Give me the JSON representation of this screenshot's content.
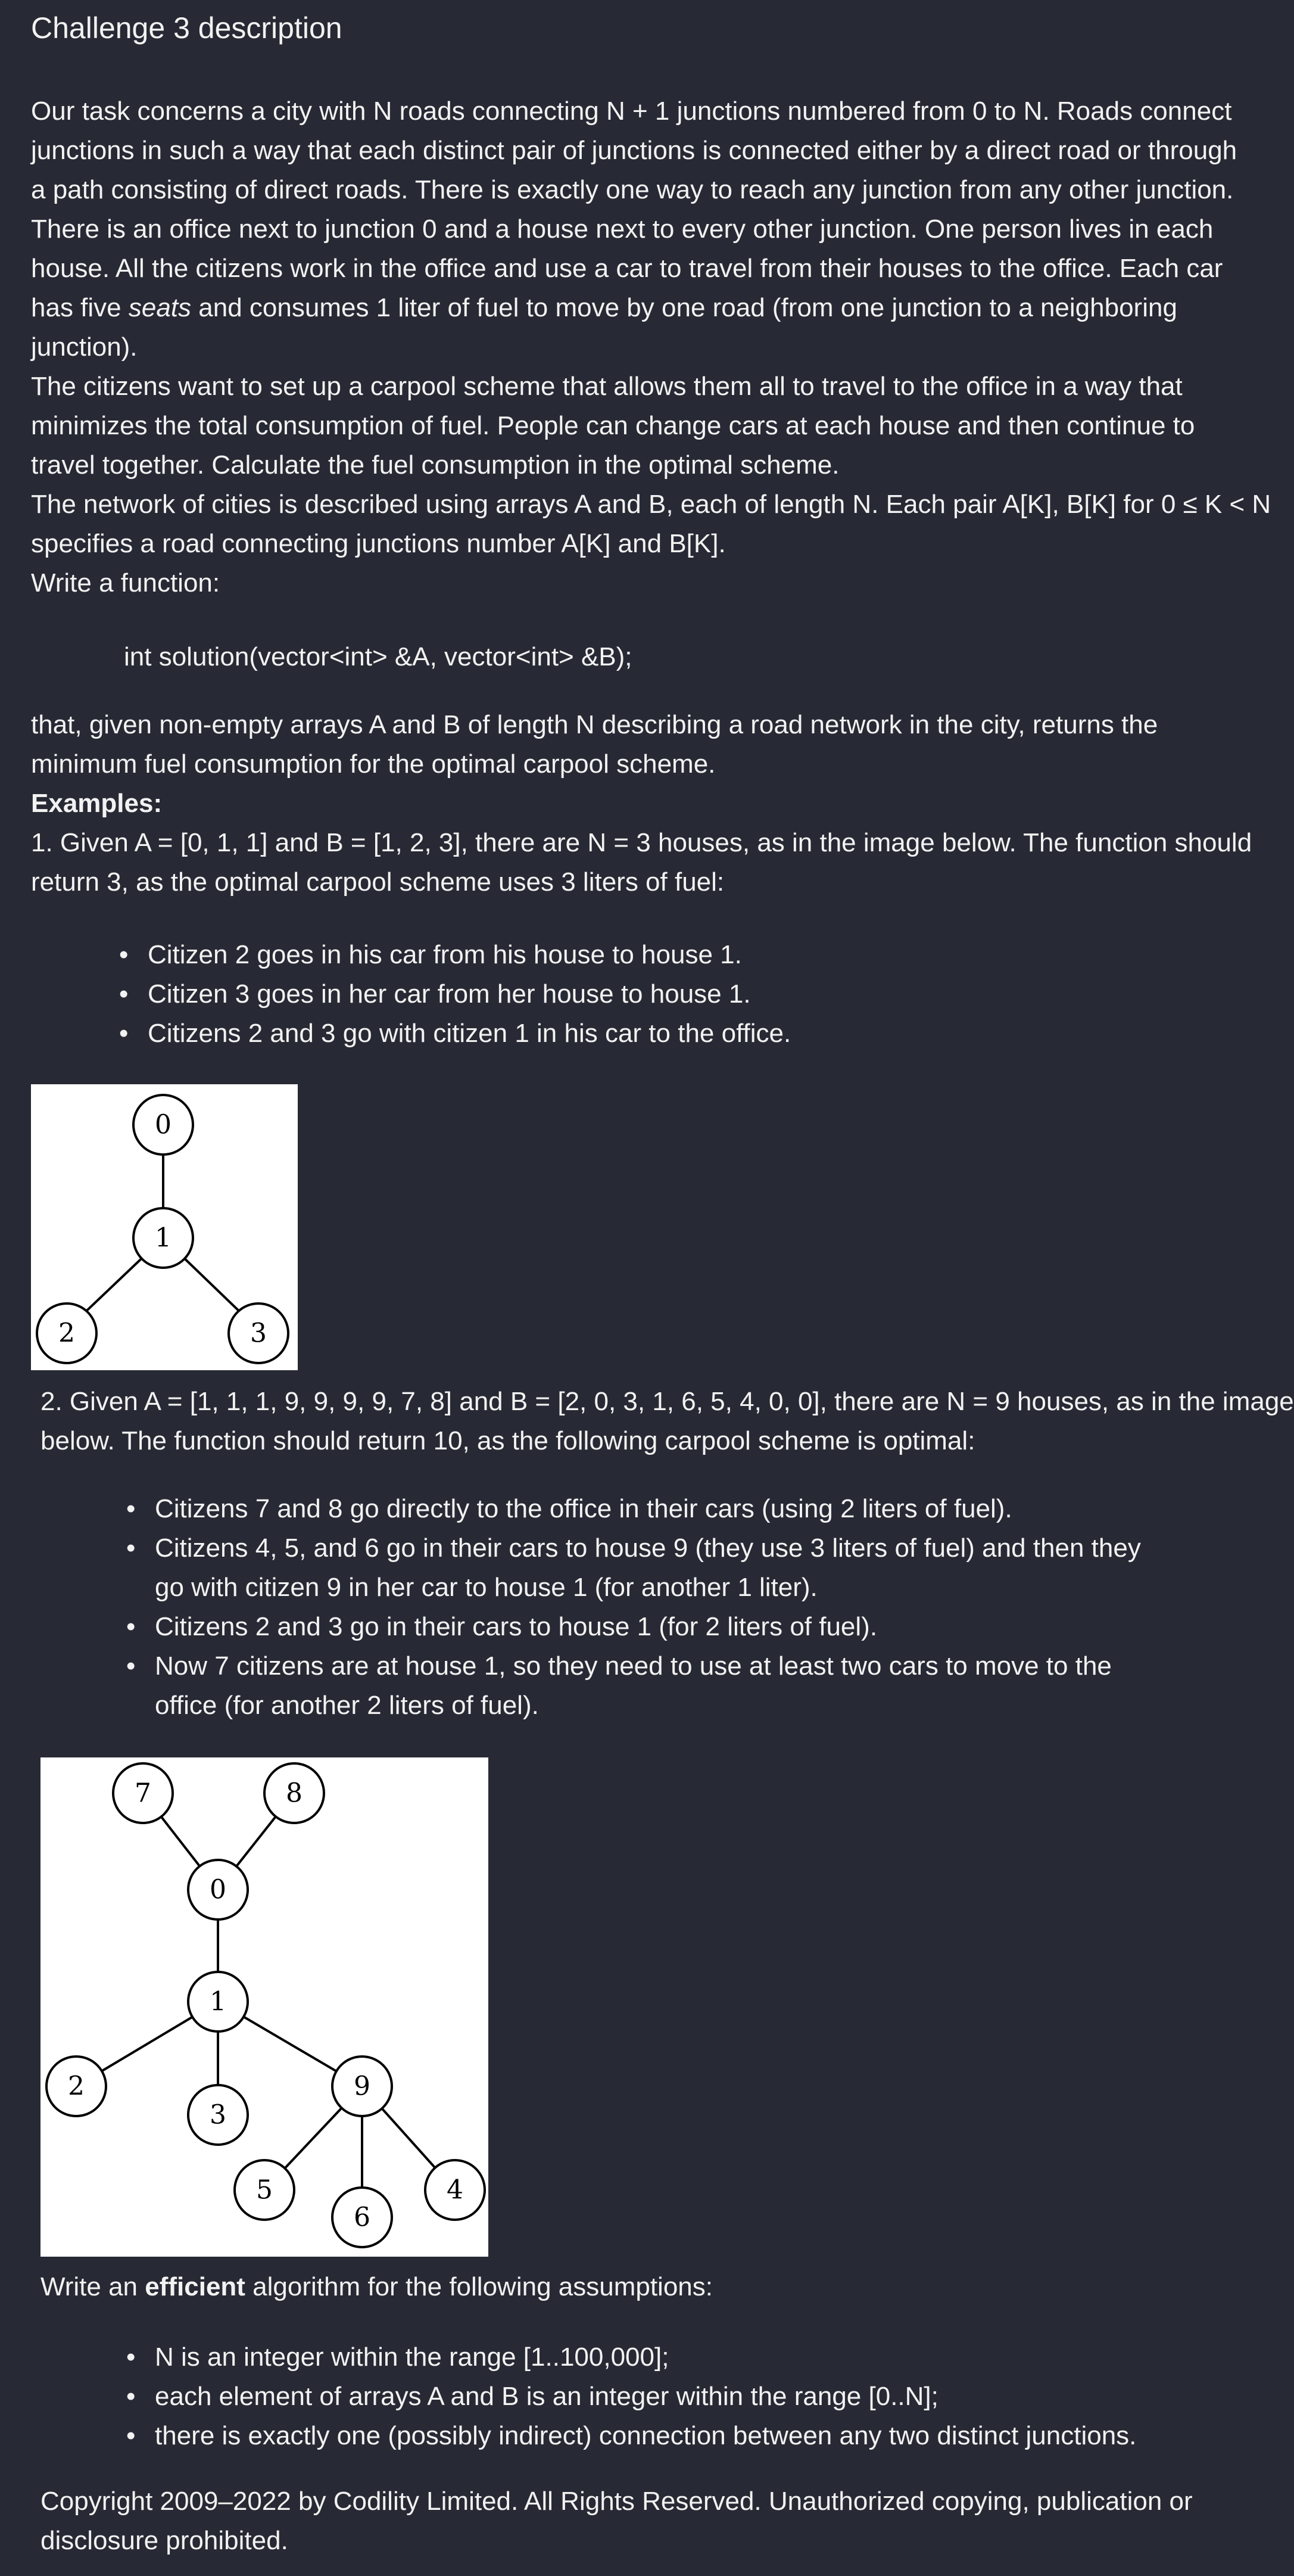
{
  "title": "Challenge 3 description",
  "intro_lines": [
    "Our task concerns a city with N roads connecting N + 1 junctions numbered from 0 to N. Roads connect",
    "junctions in such a way that each distinct pair of junctions is connected either by a direct road or through",
    "a path consisting of direct roads. There is exactly one way to reach any junction from any other junction.",
    "There is an office next to junction 0 and a house next to every other junction. One person lives in each",
    "house. All the citizens work in the office and use a car to travel from their houses to the office. Each car",
    "has five ",
    "seats",
    " and consumes 1 liter of fuel to move by one road (from one junction to a neighboring",
    "junction).",
    "The citizens want to set up a carpool scheme that allows them all to travel to the office in a way that",
    "minimizes the total consumption of fuel. People can change cars at each house and then continue to",
    "travel together. Calculate the fuel consumption in the optimal scheme.",
    "The network of cities is described using arrays A and B, each of length N. Each pair A[K], B[K] for 0 ≤ K < N",
    "specifies a road connecting junctions number A[K] and B[K].",
    "Write a function:"
  ],
  "code": "int solution(vector<int> &A, vector<int> &B);",
  "after_code_lines": [
    "that, given non-empty arrays A and B of length N describing a road network in the city, returns the",
    "minimum fuel consumption for the optimal carpool scheme."
  ],
  "examples_heading": "Examples:",
  "example1": {
    "lines": [
      "1. Given A = [0, 1, 1] and B = [1, 2, 3], there are N = 3 houses, as in the image below. The function should",
      "return 3, as the optimal carpool scheme uses 3 liters of fuel:"
    ],
    "bullets": [
      "Citizen 2 goes in his car from his house to house 1.",
      "Citizen 3 goes in her car from her house to house 1.",
      "Citizens 2 and 3 go with citizen 1 in his car to the office."
    ],
    "graph_nodes": [
      "0",
      "1",
      "2",
      "3"
    ]
  },
  "example2": {
    "lines": [
      "2. Given A = [1, 1, 1, 9, 9, 9, 9, 7, 8] and B = [2, 0, 3, 1, 6, 5, 4, 0, 0], there are N = 9 houses, as in the image",
      "below. The function should return 10, as the following carpool scheme is optimal:"
    ],
    "bullets": [
      [
        "Citizens 7 and 8 go directly to the office in their cars (using 2 liters of fuel)."
      ],
      [
        "Citizens 4, 5, and 6 go in their cars to house 9 (they use 3 liters of fuel) and then they",
        "go with citizen 9 in her car to house 1 (for another 1 liter)."
      ],
      [
        "Citizens 2 and 3 go in their cars to house 1 (for 2 liters of fuel)."
      ],
      [
        "Now 7 citizens are at house 1, so they need to use at least two cars to move to the",
        "office (for another 2 liters of fuel)."
      ]
    ],
    "graph_nodes": [
      "7",
      "8",
      "0",
      "1",
      "2",
      "9",
      "3",
      "5",
      "4",
      "6"
    ]
  },
  "efficient": {
    "prefix": "Write an ",
    "bold": "efficient",
    "suffix": " algorithm for the following assumptions:"
  },
  "assumptions": [
    "N is an integer within the range [1..100,000];",
    "each element of arrays A and B is an integer within the range [0..N];",
    "there is exactly one (possibly indirect) connection between any two distinct junctions."
  ],
  "copyright_lines": [
    "Copyright 2009–2022 by Codility Limited. All Rights Reserved. Unauthorized copying, publication or",
    "disclosure prohibited."
  ],
  "bullet_glyph": "•",
  "colors": {
    "background": "#272a34",
    "text": "#f2f2f2"
  }
}
